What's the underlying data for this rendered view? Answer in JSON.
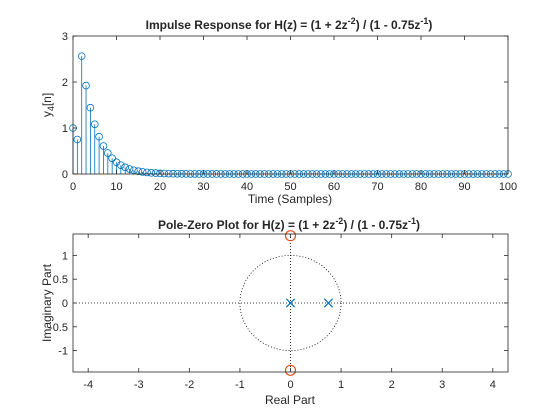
{
  "colors": {
    "stem": "#0072BD",
    "zero": "#D95319",
    "pole": "#0072BD",
    "axis": "#262626"
  },
  "chart_data": [
    {
      "type": "stem",
      "title_parts": {
        "prefix": "Impulse Response for H(z) = (1 + 2z",
        "exp1": "-2",
        "middle": ") / (1 - 0.75z",
        "exp2": "-1",
        "suffix": ")"
      },
      "xlabel": "Time (Samples)",
      "ylabel": "y",
      "ylabel_sub": "4",
      "ylabel_suffix": "[n]",
      "xlim": [
        0,
        100
      ],
      "ylim": [
        0,
        3
      ],
      "xticks": [
        0,
        10,
        20,
        30,
        40,
        50,
        60,
        70,
        80,
        90,
        100
      ],
      "yticks": [
        0,
        1,
        2,
        3
      ],
      "marker": "circle",
      "series": [
        {
          "x_start": 0,
          "x_end": 100,
          "formula": "y[0]=1, y[1]=0.75, y[n]=2.5625*0.75^(n-2) for n>=2",
          "values_first": [
            1,
            0.75,
            2.5625,
            1.9219,
            1.4414,
            1.0811,
            0.8108,
            0.6081,
            0.4561,
            0.3421,
            0.2566,
            0.1924,
            0.1443,
            0.1082,
            0.0812,
            0.0609,
            0.0457,
            0.0342,
            0.0257,
            0.0193,
            0.0144
          ]
        }
      ]
    },
    {
      "type": "pole-zero",
      "title_parts": {
        "prefix": "Pole-Zero Plot for H(z) = (1 + 2z",
        "exp1": "-2",
        "middle": ") / (1 - 0.75z",
        "exp2": "-1",
        "suffix": ")"
      },
      "xlabel": "Real Part",
      "ylabel": "Imaginary Part",
      "xlim": [
        -4.3,
        4.3
      ],
      "ylim": [
        -1.45,
        1.45
      ],
      "xticks": [
        -4,
        -3,
        -2,
        -1,
        0,
        1,
        2,
        3,
        4
      ],
      "yticks": [
        -1,
        -0.5,
        0,
        0.5,
        1
      ],
      "unit_circle": true,
      "zeros": [
        {
          "re": 0,
          "im": 1.4142
        },
        {
          "re": 0,
          "im": -1.4142
        }
      ],
      "poles": [
        {
          "re": 0,
          "im": 0
        },
        {
          "re": 0.75,
          "im": 0
        }
      ]
    }
  ]
}
